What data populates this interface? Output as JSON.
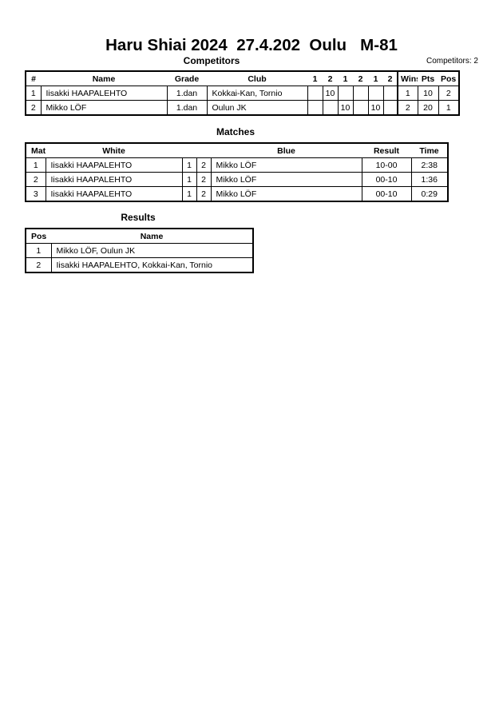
{
  "title": "Haru Shiai 2024  27.4.202  Oulu   M-81",
  "competitors": {
    "heading": "Competitors",
    "count_label": "Competitors: 2",
    "columns": [
      "#",
      "Name",
      "Grade",
      "Club",
      "1",
      "2",
      "1",
      "2",
      "1",
      "2",
      "Wins",
      "Pts",
      "Pos"
    ],
    "rows": [
      [
        "1",
        "Iisakki HAAPALEHTO",
        "1.dan",
        "Kokkai-Kan, Tornio",
        "",
        "10",
        "",
        "",
        "",
        "",
        "1",
        "10",
        "2"
      ],
      [
        "2",
        "Mikko LÖF",
        "1.dan",
        "Oulun JK",
        "",
        "",
        "10",
        "",
        "10",
        "",
        "2",
        "20",
        "1"
      ]
    ]
  },
  "matches": {
    "heading": "Matches",
    "columns": [
      "Match",
      "White",
      "",
      "",
      "Blue",
      "Result",
      "Time"
    ],
    "rows": [
      [
        "1",
        "Iisakki HAAPALEHTO",
        "1",
        "2",
        "Mikko LÖF",
        "10-00",
        "2:38"
      ],
      [
        "2",
        "Iisakki HAAPALEHTO",
        "1",
        "2",
        "Mikko LÖF",
        "00-10",
        "1:36"
      ],
      [
        "3",
        "Iisakki HAAPALEHTO",
        "1",
        "2",
        "Mikko LÖF",
        "00-10",
        "0:29"
      ]
    ]
  },
  "results": {
    "heading": "Results",
    "columns": [
      "Pos",
      "Name"
    ],
    "rows": [
      [
        "1",
        "Mikko LÖF, Oulun JK"
      ],
      [
        "2",
        "Iisakki HAAPALEHTO, Kokkai-Kan, Tornio"
      ]
    ]
  }
}
